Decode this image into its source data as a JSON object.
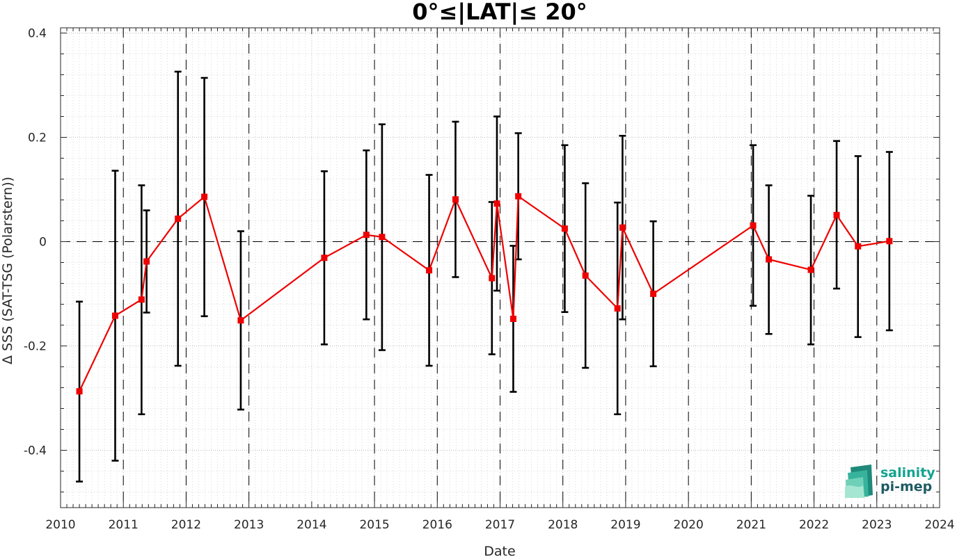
{
  "chart_data": {
    "type": "line",
    "title": "0°≤|LAT|≤ 20°",
    "xlabel": "Date",
    "ylabel": "Δ SSS (SAT-TSG (Polarstern))",
    "xlim": [
      2010,
      2024
    ],
    "ylim": [
      -0.51,
      0.41
    ],
    "xticks": [
      "2010",
      "2011",
      "2012",
      "2013",
      "2014",
      "2015",
      "2016",
      "2017",
      "2018",
      "2019",
      "2020",
      "2021",
      "2022",
      "2023",
      "2024"
    ],
    "yticks": [
      {
        "value": 0.4,
        "label": "0.4"
      },
      {
        "value": 0.2,
        "label": "0.2"
      },
      {
        "value": 0,
        "label": "0"
      },
      {
        "value": -0.2,
        "label": "-0.2"
      },
      {
        "value": -0.4,
        "label": "-0.4"
      }
    ],
    "grid": "dotted",
    "reference_line_y": 0,
    "vertical_dashed_lines_x": [
      2011,
      2012,
      2013,
      2015,
      2016,
      2017,
      2018,
      2019,
      2020,
      2021,
      2022,
      2023
    ],
    "colors": {
      "series": "#ee0000",
      "errorbar": "#000000"
    },
    "series": [
      {
        "marker": "square",
        "points": [
          {
            "x": 2010.3,
            "y": -0.287,
            "low": -0.46,
            "high": -0.115
          },
          {
            "x": 2010.87,
            "y": -0.142,
            "low": -0.42,
            "high": 0.136
          },
          {
            "x": 2011.29,
            "y": -0.111,
            "low": -0.331,
            "high": 0.108
          },
          {
            "x": 2011.37,
            "y": -0.038,
            "low": -0.136,
            "high": 0.06
          },
          {
            "x": 2011.87,
            "y": 0.044,
            "low": -0.238,
            "high": 0.326
          },
          {
            "x": 2012.29,
            "y": 0.086,
            "low": -0.143,
            "high": 0.314
          },
          {
            "x": 2012.87,
            "y": -0.151,
            "low": -0.322,
            "high": 0.02
          },
          {
            "x": 2014.2,
            "y": -0.031,
            "low": -0.197,
            "high": 0.135
          },
          {
            "x": 2014.87,
            "y": 0.013,
            "low": -0.149,
            "high": 0.175
          },
          {
            "x": 2015.12,
            "y": 0.009,
            "low": -0.208,
            "high": 0.225
          },
          {
            "x": 2015.87,
            "y": -0.055,
            "low": -0.238,
            "high": 0.128
          },
          {
            "x": 2016.29,
            "y": 0.081,
            "low": -0.068,
            "high": 0.23
          },
          {
            "x": 2016.87,
            "y": -0.07,
            "low": -0.216,
            "high": 0.076
          },
          {
            "x": 2016.95,
            "y": 0.073,
            "low": -0.094,
            "high": 0.24
          },
          {
            "x": 2017.21,
            "y": -0.148,
            "low": -0.288,
            "high": -0.008
          },
          {
            "x": 2017.29,
            "y": 0.087,
            "low": -0.034,
            "high": 0.208
          },
          {
            "x": 2018.03,
            "y": 0.025,
            "low": -0.135,
            "high": 0.185
          },
          {
            "x": 2018.36,
            "y": -0.065,
            "low": -0.242,
            "high": 0.112
          },
          {
            "x": 2018.87,
            "y": -0.128,
            "low": -0.331,
            "high": 0.075
          },
          {
            "x": 2018.95,
            "y": 0.027,
            "low": -0.149,
            "high": 0.203
          },
          {
            "x": 2019.44,
            "y": -0.1,
            "low": -0.239,
            "high": 0.039
          },
          {
            "x": 2021.03,
            "y": 0.031,
            "low": -0.123,
            "high": 0.185
          },
          {
            "x": 2021.28,
            "y": -0.034,
            "low": -0.177,
            "high": 0.108
          },
          {
            "x": 2021.95,
            "y": -0.054,
            "low": -0.197,
            "high": 0.088
          },
          {
            "x": 2022.36,
            "y": 0.051,
            "low": -0.09,
            "high": 0.193
          },
          {
            "x": 2022.7,
            "y": -0.009,
            "low": -0.183,
            "high": 0.164
          },
          {
            "x": 2023.2,
            "y": 0.001,
            "low": -0.17,
            "high": 0.172
          }
        ]
      }
    ]
  },
  "logo": {
    "line1": "salinity",
    "line2": "pi-mep"
  }
}
